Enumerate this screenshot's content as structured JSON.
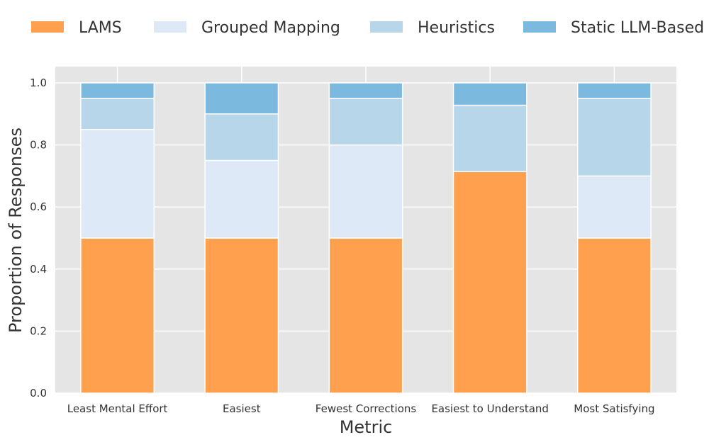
{
  "chart_data": {
    "type": "bar",
    "stacked": true,
    "xlabel": "Metric",
    "ylabel": "Proportion of Responses",
    "ylim": [
      0,
      1.0
    ],
    "yticks": [
      "0.0",
      "0.2",
      "0.4",
      "0.6",
      "0.8",
      "1.0"
    ],
    "grid": true,
    "legend_position": "top",
    "categories": [
      "Least Mental Effort",
      "Easiest",
      "Fewest Corrections",
      "Easiest to Understand",
      "Most Satisfying"
    ],
    "series": [
      {
        "name": "LAMS",
        "color": "#ffa04f",
        "values": [
          0.5,
          0.5,
          0.5,
          0.714,
          0.5
        ]
      },
      {
        "name": "Grouped Mapping",
        "color": "#dde9f7",
        "values": [
          0.35,
          0.25,
          0.3,
          0.0,
          0.2
        ]
      },
      {
        "name": "Heuristics",
        "color": "#b7d6ea",
        "values": [
          0.1,
          0.15,
          0.15,
          0.214,
          0.25
        ]
      },
      {
        "name": "Static LLM-Based",
        "color": "#7bb9de",
        "values": [
          0.05,
          0.1,
          0.05,
          0.072,
          0.05
        ]
      }
    ]
  }
}
